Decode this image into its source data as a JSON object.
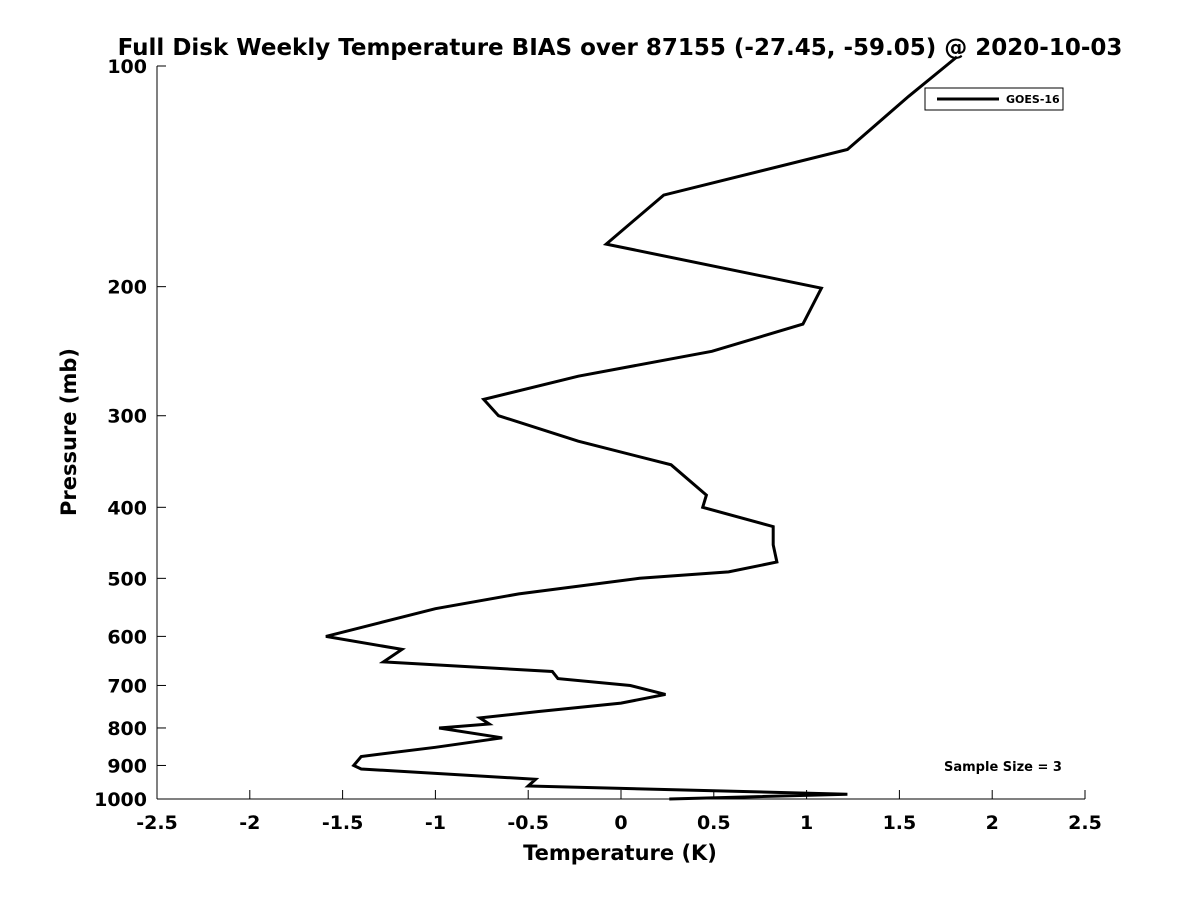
{
  "chart_data": {
    "type": "line",
    "title": "Full Disk Weekly Temperature BIAS over 87155 (-27.45, -59.05) @ 2020-10-03",
    "xlabel": "Temperature (K)",
    "ylabel": "Pressure (mb)",
    "xlim": [
      -2.5,
      2.5
    ],
    "ylim": [
      100,
      1000
    ],
    "y_scale": "log",
    "y_reversed": true,
    "x_ticks": [
      -2.5,
      -2,
      -1.5,
      -1,
      -0.5,
      0,
      0.5,
      1,
      1.5,
      2,
      2.5
    ],
    "x_tick_labels": [
      "-2.5",
      "-2",
      "-1.5",
      "-1",
      "-0.5",
      "0",
      "0.5",
      "1",
      "1.5",
      "2",
      "2.5"
    ],
    "y_ticks": [
      100,
      200,
      300,
      400,
      500,
      600,
      700,
      800,
      900,
      1000
    ],
    "y_tick_labels": [
      "100",
      "200",
      "300",
      "400",
      "500",
      "600",
      "700",
      "800",
      "900",
      "1000"
    ],
    "grid": false,
    "legend_position": "top-right",
    "annotation": "Sample Size = 3",
    "series": [
      {
        "name": "GOES-16",
        "color": "#000000",
        "points": [
          {
            "x": 1.75,
            "y": 100
          },
          {
            "x": 1.55,
            "y": 110
          },
          {
            "x": 1.22,
            "y": 130
          },
          {
            "x": 0.23,
            "y": 150
          },
          {
            "x": -0.08,
            "y": 175
          },
          {
            "x": 1.08,
            "y": 201
          },
          {
            "x": 0.98,
            "y": 225
          },
          {
            "x": 0.49,
            "y": 245
          },
          {
            "x": -0.23,
            "y": 265
          },
          {
            "x": -0.74,
            "y": 285
          },
          {
            "x": -0.66,
            "y": 300
          },
          {
            "x": -0.23,
            "y": 325
          },
          {
            "x": 0.27,
            "y": 350
          },
          {
            "x": 0.46,
            "y": 385
          },
          {
            "x": 0.44,
            "y": 400
          },
          {
            "x": 0.82,
            "y": 425
          },
          {
            "x": 0.82,
            "y": 450
          },
          {
            "x": 0.84,
            "y": 475
          },
          {
            "x": 0.58,
            "y": 490
          },
          {
            "x": 0.1,
            "y": 500
          },
          {
            "x": -0.55,
            "y": 525
          },
          {
            "x": -1.0,
            "y": 550
          },
          {
            "x": -1.3,
            "y": 575
          },
          {
            "x": -1.59,
            "y": 600
          },
          {
            "x": -1.18,
            "y": 625
          },
          {
            "x": -1.28,
            "y": 650
          },
          {
            "x": -0.37,
            "y": 670
          },
          {
            "x": -0.34,
            "y": 685
          },
          {
            "x": 0.05,
            "y": 700
          },
          {
            "x": 0.24,
            "y": 720
          },
          {
            "x": 0.0,
            "y": 740
          },
          {
            "x": -0.45,
            "y": 760
          },
          {
            "x": -0.76,
            "y": 775
          },
          {
            "x": -0.71,
            "y": 790
          },
          {
            "x": -0.98,
            "y": 800
          },
          {
            "x": -0.64,
            "y": 825
          },
          {
            "x": -1.0,
            "y": 850
          },
          {
            "x": -1.4,
            "y": 875
          },
          {
            "x": -1.44,
            "y": 900
          },
          {
            "x": -1.4,
            "y": 910
          },
          {
            "x": -0.46,
            "y": 940
          },
          {
            "x": -0.5,
            "y": 960
          },
          {
            "x": 1.22,
            "y": 985
          },
          {
            "x": 0.26,
            "y": 1000
          }
        ]
      }
    ]
  }
}
